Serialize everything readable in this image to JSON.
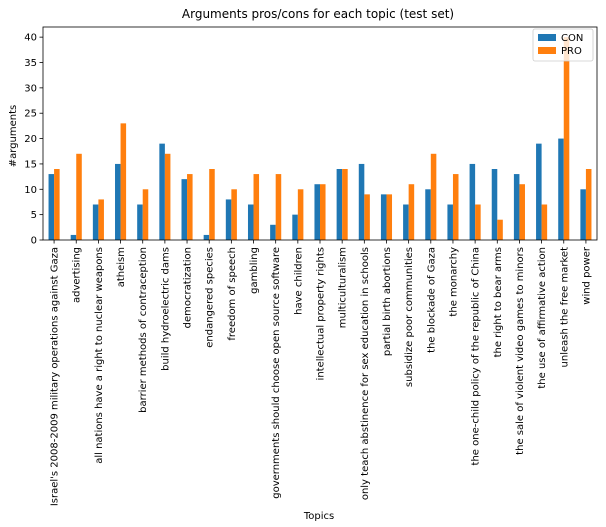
{
  "chart_data": {
    "type": "bar",
    "title": "Arguments pros/cons for each topic (test set)",
    "xlabel": "Topics",
    "ylabel": "#arguments",
    "ylim": [
      0,
      42
    ],
    "yticks": [
      0,
      5,
      10,
      15,
      20,
      25,
      30,
      35,
      40
    ],
    "legend_position": "top-right",
    "categories": [
      "Israel's 2008-2009 military operations against Gaza",
      "advertising",
      "all nations have a right to nuclear weapons",
      "atheism",
      "barrier methods of contraception",
      "build hydroelectric dams",
      "democratization",
      "endangered species",
      "freedom of speech",
      "gambling",
      "governments should choose open source software",
      "have children",
      "intellectual property rights",
      "multiculturalism",
      "only teach abstinence for sex education in schools",
      "partial birth abortions",
      "subsidize poor communities",
      "the blockade of Gaza",
      "the monarchy",
      "the one-child policy of the republic of China",
      "the right to bear arms",
      "the sale of violent video games to minors",
      "the use of affirmative action",
      "unleash the free market",
      "wind power"
    ],
    "series": [
      {
        "name": "CON",
        "color": "#1f77b4",
        "values": [
          13,
          1,
          7,
          15,
          7,
          19,
          12,
          1,
          8,
          7,
          3,
          5,
          11,
          14,
          15,
          9,
          7,
          10,
          7,
          15,
          14,
          13,
          19,
          20,
          10
        ]
      },
      {
        "name": "PRO",
        "color": "#ff7f0e",
        "values": [
          14,
          17,
          8,
          23,
          10,
          17,
          13,
          14,
          10,
          13,
          13,
          10,
          11,
          14,
          9,
          9,
          11,
          17,
          13,
          7,
          4,
          11,
          7,
          40,
          14
        ]
      }
    ]
  }
}
